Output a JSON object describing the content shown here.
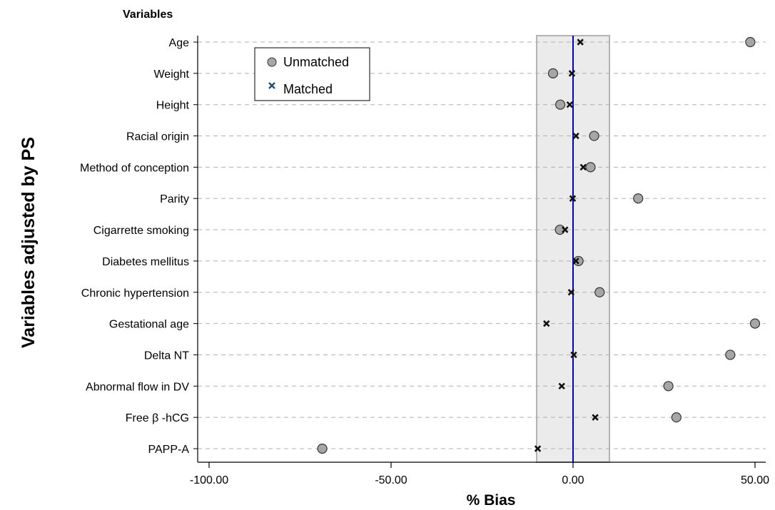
{
  "chart_data": {
    "type": "scatter",
    "top_label": "Variables",
    "xlabel": "% Bias",
    "ylabel": "Variables adjusted by PS",
    "xlim": [
      -105,
      52
    ],
    "xticks": [
      -100,
      -50,
      0,
      50
    ],
    "xtick_labels": [
      "-100.00",
      "-50.00",
      "0.00",
      "50.00"
    ],
    "categories": [
      "Age",
      "Weight",
      "Height",
      "Racial origin",
      "Method of conception",
      "Parity",
      "Cigarrette smoking",
      "Diabetes mellitus",
      "Chronic hypertension",
      "Gestational age",
      "Delta NT",
      "Abnormal flow in DV",
      "Free β -hCG",
      "PAPP-A"
    ],
    "series": [
      {
        "name": "Unmatched",
        "marker": "circle",
        "color": "#a6a6a6",
        "values": [
          48.7,
          -5.5,
          -3.5,
          5.8,
          4.8,
          17.9,
          -3.6,
          1.5,
          7.3,
          50.0,
          43.2,
          26.2,
          28.4,
          -68.9
        ]
      },
      {
        "name": "Matched",
        "marker": "x",
        "color": "#1f4e79",
        "values": [
          2.0,
          -0.3,
          -0.9,
          0.8,
          2.8,
          -0.1,
          -2.2,
          0.8,
          -0.5,
          -7.3,
          0.2,
          -3.1,
          6.1,
          -9.7
        ]
      }
    ],
    "reference_line": {
      "x": 0,
      "color": "#0000cc"
    },
    "shaded_band": {
      "x": [
        -10,
        10
      ],
      "color": "#ebebeb",
      "border": "#b3b3b3"
    },
    "grid": {
      "horizontal": true,
      "style": "dashed"
    },
    "legend": {
      "position": "top-left-inside"
    }
  }
}
